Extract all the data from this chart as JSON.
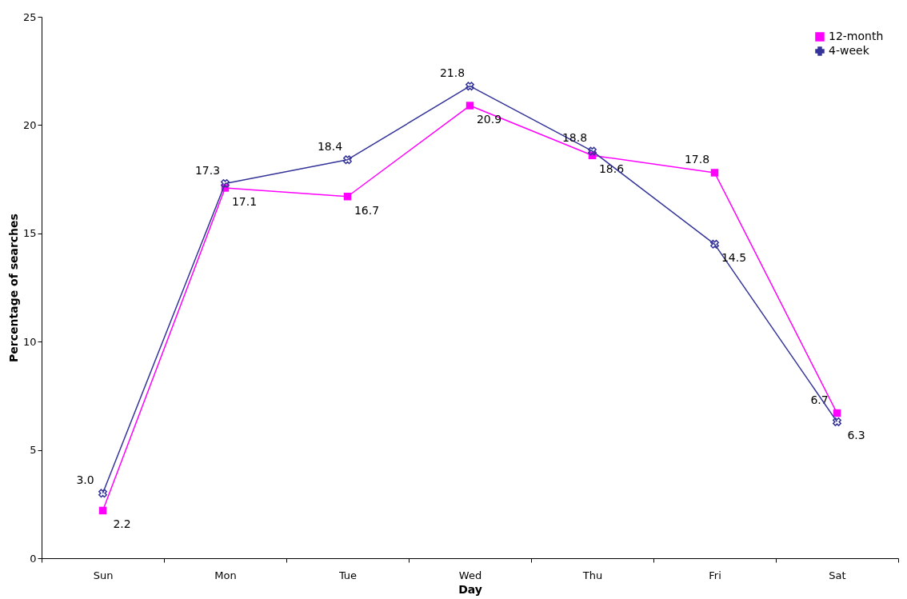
{
  "chart_data": {
    "type": "line",
    "xlabel": "Day",
    "ylabel": "Percentage of searches",
    "categories": [
      "Sun",
      "Mon",
      "Tue",
      "Wed",
      "Thu",
      "Fri",
      "Sat"
    ],
    "series": [
      {
        "name": "12-month",
        "color": "#ff00ff",
        "marker": "square",
        "values": [
          2.2,
          17.1,
          16.7,
          20.9,
          18.6,
          17.8,
          6.7
        ],
        "value_labels": [
          "2.2",
          "17.1",
          "16.7",
          "20.9",
          "18.6",
          "17.8",
          "6.7"
        ]
      },
      {
        "name": "4-week",
        "color": "#333399",
        "marker": "cross",
        "values": [
          3.0,
          17.3,
          18.4,
          21.8,
          18.8,
          14.5,
          6.3
        ],
        "value_labels": [
          "3.0",
          "17.3",
          "18.4",
          "21.8",
          "18.8",
          "14.5",
          "6.3"
        ]
      }
    ],
    "ylim": [
      0,
      25
    ],
    "yticks": [
      0,
      5,
      10,
      15,
      20,
      25
    ],
    "grid": false,
    "legend": "top right",
    "line_style": "solid"
  }
}
